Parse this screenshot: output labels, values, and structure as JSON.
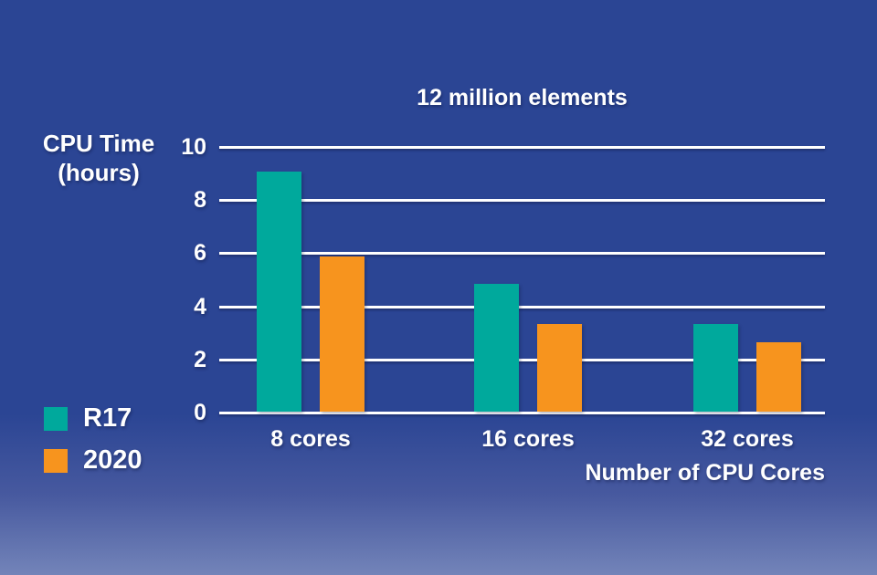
{
  "title": "12 million elements",
  "y_axis": {
    "title_line1": "CPU Time",
    "title_line2": "(hours)",
    "ticks": [
      "10",
      "8",
      "6",
      "4",
      "2",
      "0"
    ]
  },
  "x_axis": {
    "title": "Number of CPU Cores",
    "categories": [
      "8 cores",
      "16 cores",
      "32 cores"
    ]
  },
  "legend": {
    "items": [
      {
        "label": "R17",
        "color": "#00a99c"
      },
      {
        "label": "2020",
        "color": "#f7941e"
      }
    ],
    "position": "bottom-left"
  },
  "colors": {
    "background": "#2b4594",
    "background_bottom": "#7384b9",
    "gridline": "#ffffff",
    "text": "#ffffff",
    "series_r17": "#00a99c",
    "series_2020": "#f7941e"
  },
  "chart_data": {
    "type": "bar",
    "title": "12 million elements",
    "xlabel": "Number of CPU Cores",
    "ylabel": "CPU Time (hours)",
    "categories": [
      "8 cores",
      "16 cores",
      "32 cores"
    ],
    "series": [
      {
        "name": "R17",
        "color": "#00a99c",
        "values": [
          9.05,
          4.8,
          3.3
        ]
      },
      {
        "name": "2020",
        "color": "#f7941e",
        "values": [
          5.85,
          3.3,
          2.6
        ]
      }
    ],
    "ylim": [
      0,
      10
    ],
    "ytick_step": 2,
    "grid": true,
    "legend_position": "bottom-left"
  }
}
